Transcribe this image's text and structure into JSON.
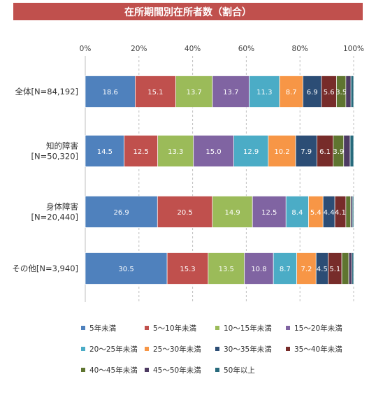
{
  "title": "在所期間別在所者数（割合）",
  "colors": {
    "title_bg": "#c0504d",
    "series": [
      "#4f81bd",
      "#c0504d",
      "#9bbb59",
      "#8064a2",
      "#4bacc6",
      "#f79646",
      "#2c4d75",
      "#772c2a",
      "#5f7530",
      "#4d3b62",
      "#276a7c"
    ]
  },
  "chart_data": {
    "type": "bar",
    "orientation": "horizontal",
    "stacked": "percent",
    "title": "在所期間別在所者数（割合）",
    "xlim": [
      0,
      100
    ],
    "x_ticks": [
      "0%",
      "20%",
      "40%",
      "60%",
      "80%",
      "100%"
    ],
    "grid": "vertical dashed",
    "legend_position": "bottom",
    "categories": [
      [
        "全体[N=84,192]"
      ],
      [
        "知的障害",
        "[N=50,320]"
      ],
      [
        "身体障害",
        "[N=20,440]"
      ],
      [
        "その他[N=3,940]"
      ]
    ],
    "series": [
      {
        "name": "5年未満",
        "values": [
          18.6,
          14.5,
          26.9,
          30.5
        ],
        "labels": [
          "18.6",
          "14.5",
          "26.9",
          "30.5"
        ]
      },
      {
        "name": "5～10年未満",
        "values": [
          15.1,
          12.5,
          20.5,
          15.3
        ],
        "labels": [
          "15.1",
          "12.5",
          "20.5",
          "15.3"
        ]
      },
      {
        "name": "10～15年未満",
        "values": [
          13.7,
          13.3,
          14.9,
          13.5
        ],
        "labels": [
          "13.7",
          "13.3",
          "14.9",
          "13.5"
        ]
      },
      {
        "name": "15～20年未満",
        "values": [
          13.7,
          15.0,
          12.5,
          10.8
        ],
        "labels": [
          "13.7",
          "15.0",
          "12.5",
          "10.8"
        ]
      },
      {
        "name": "20～25年未満",
        "values": [
          11.3,
          12.9,
          8.4,
          8.7
        ],
        "labels": [
          "11.3",
          "12.9",
          "8.4",
          "8.7"
        ]
      },
      {
        "name": "25～30年未満",
        "values": [
          8.7,
          10.2,
          5.4,
          7.2
        ],
        "labels": [
          "8.7",
          "10.2",
          "5.4",
          "7.2"
        ]
      },
      {
        "name": "30～35年未満",
        "values": [
          6.9,
          7.9,
          4.4,
          4.5
        ],
        "labels": [
          "6.9",
          "7.9",
          "4.4",
          "4.5"
        ]
      },
      {
        "name": "35～40年未満",
        "values": [
          5.6,
          6.1,
          4.1,
          5.1
        ],
        "labels": [
          "5.6",
          "6.1",
          "4.1",
          "5.1"
        ]
      },
      {
        "name": "40～45年未満",
        "values": [
          3.5,
          3.9,
          1.8,
          2.6
        ],
        "labels": [
          "3.5",
          "3.9",
          "",
          ""
        ]
      },
      {
        "name": "45～50年未満",
        "values": [
          1.9,
          2.4,
          0.6,
          1.2
        ],
        "labels": [
          "",
          "",
          "",
          ""
        ]
      },
      {
        "name": "50年以上",
        "values": [
          1.0,
          1.3,
          0.5,
          0.6
        ],
        "labels": [
          "",
          "",
          "",
          ""
        ]
      }
    ]
  }
}
